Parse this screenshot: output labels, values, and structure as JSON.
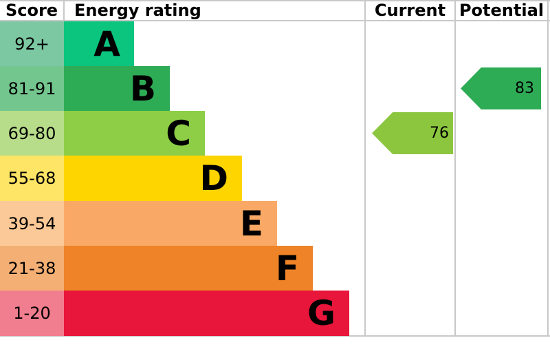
{
  "header": {
    "score": "Score",
    "energy_rating": "Energy rating",
    "current": "Current",
    "potential": "Potential"
  },
  "chart_data": {
    "type": "bar",
    "subtype": "epc-energy-rating-chart",
    "title": "Energy rating",
    "columns": [
      "Score",
      "Energy rating",
      "Current",
      "Potential"
    ],
    "bands": [
      {
        "letter": "A",
        "score_range": "92+",
        "band_color": "#0bc47e",
        "score_cell_color": "#7cc8a3"
      },
      {
        "letter": "B",
        "score_range": "81-91",
        "band_color": "#2eab55",
        "score_cell_color": "#74c68f"
      },
      {
        "letter": "C",
        "score_range": "69-80",
        "band_color": "#8dce46",
        "score_cell_color": "#b8dd8a"
      },
      {
        "letter": "D",
        "score_range": "55-68",
        "band_color": "#ffd500",
        "score_cell_color": "#ffe566"
      },
      {
        "letter": "E",
        "score_range": "39-54",
        "band_color": "#f9a965",
        "score_cell_color": "#fbc897"
      },
      {
        "letter": "F",
        "score_range": "21-38",
        "band_color": "#ee8327",
        "score_cell_color": "#f4b074"
      },
      {
        "letter": "G",
        "score_range": "1-20",
        "band_color": "#e8163a",
        "score_cell_color": "#f17e8e"
      }
    ],
    "current": {
      "value": "76",
      "band": "C",
      "arrow_color": "#8cc63f"
    },
    "potential": {
      "value": "83",
      "band": "B",
      "arrow_color": "#2eab55"
    },
    "layout_hints": {
      "grid_line_color": "#c8c8c8",
      "background": "#ffffff",
      "legend": "none"
    }
  }
}
